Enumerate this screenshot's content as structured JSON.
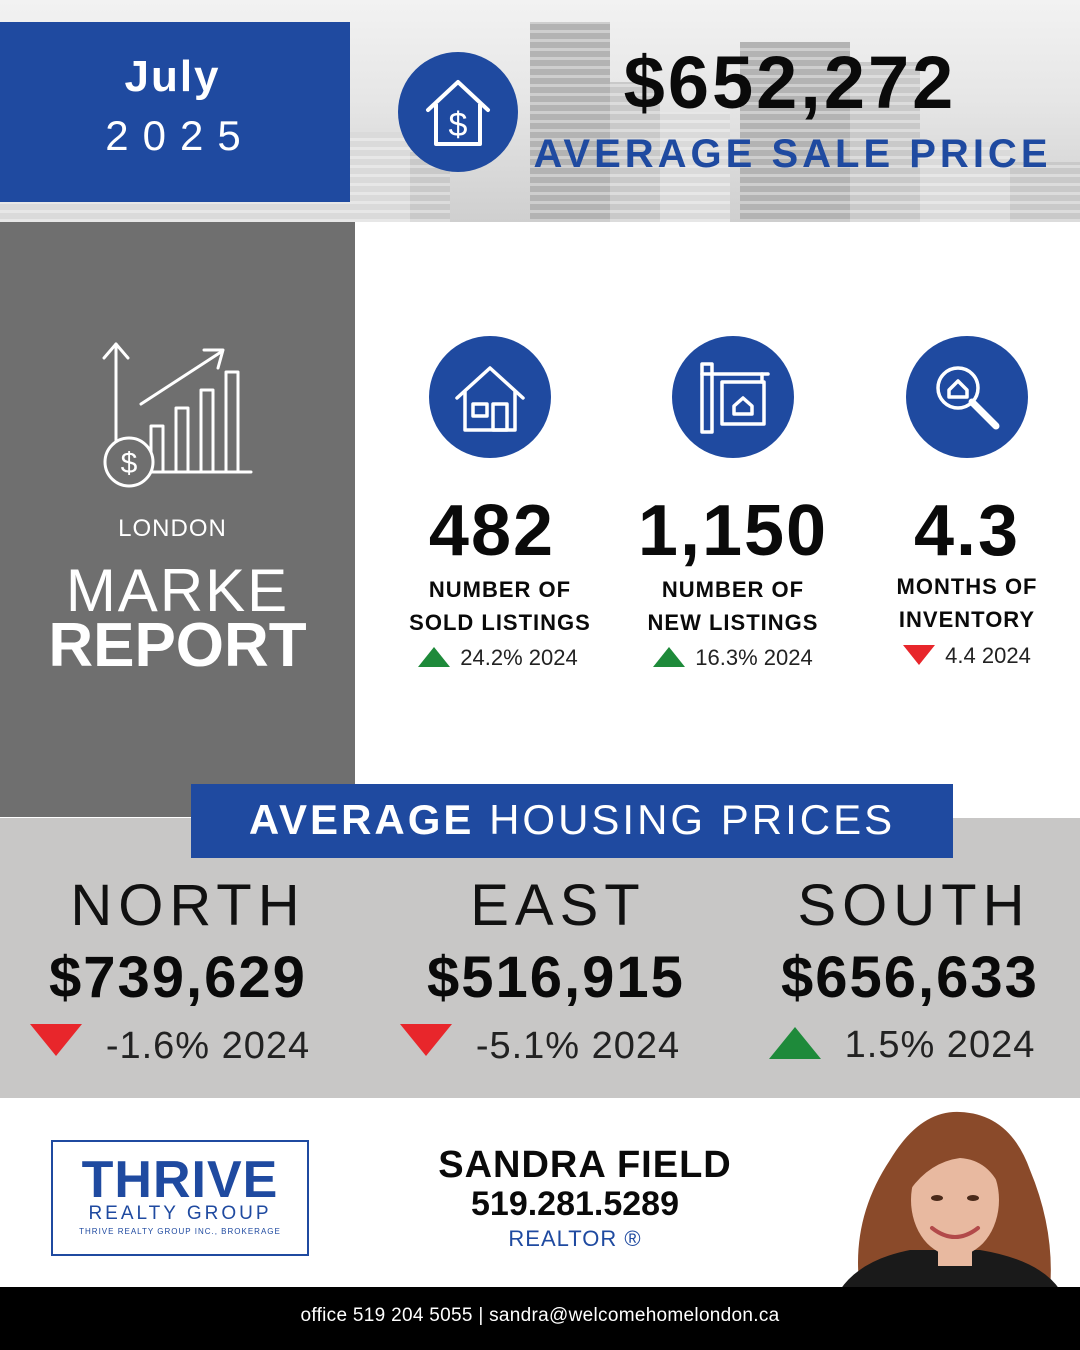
{
  "header": {
    "month": "July",
    "year": "2025",
    "average_sale_price": "$652,272",
    "average_sale_price_label": "AVERAGE SALE PRICE"
  },
  "side_panel": {
    "city": "LONDON",
    "market_word": "MARKE",
    "report_word": "REPORT"
  },
  "stats": [
    {
      "value": "482",
      "label_line1": "NUMBER OF",
      "label_line2": "SOLD LISTINGS",
      "change": "24.2% 2024",
      "direction": "up"
    },
    {
      "value": "1,150",
      "label_line1": "NUMBER OF",
      "label_line2": "NEW LISTINGS",
      "change": "16.3% 2024",
      "direction": "up"
    },
    {
      "value": "4.3",
      "label_line1": "MONTHS OF",
      "label_line2": "INVENTORY",
      "change": "4.4 2024",
      "direction": "down"
    }
  ],
  "regions": {
    "title_bold": "AVERAGE",
    "title_rest": " HOUSING PRICES",
    "items": [
      {
        "name": "NORTH",
        "price": "$739,629",
        "change": "-1.6% 2024",
        "direction": "down"
      },
      {
        "name": "EAST",
        "price": "$516,915",
        "change": "-5.1% 2024",
        "direction": "down"
      },
      {
        "name": "SOUTH",
        "price": "$656,633",
        "change": "1.5% 2024",
        "direction": "up"
      }
    ]
  },
  "brokerage": {
    "name": "THRIVE",
    "subtitle": "REALTY GROUP",
    "legal": "THRIVE REALTY GROUP INC., BROKERAGE"
  },
  "agent": {
    "name": "SANDRA FIELD",
    "phone": "519.281.5289",
    "title": "REALTOR ®"
  },
  "footer": {
    "contact": "office 519 204 5055 | sandra@welcomehomelondon.ca"
  },
  "colors": {
    "brand_blue": "#1f4aa0",
    "up_green": "#1e8a3a",
    "down_red": "#e8262b",
    "panel_gray": "#6f6f6f",
    "band_gray": "#c8c7c6"
  },
  "icons": {
    "price": "house-dollar-icon",
    "sold": "house-icon",
    "new": "for-sale-sign-icon",
    "inventory": "magnifier-house-icon",
    "side": "growth-chart-dollar-icon"
  }
}
